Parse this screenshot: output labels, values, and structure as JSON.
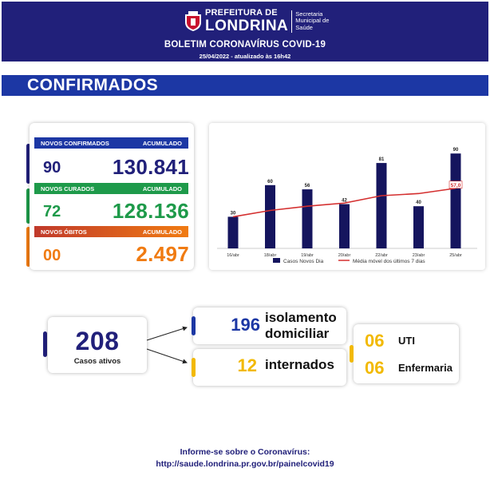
{
  "header": {
    "logo_line1": "PREFEITURA DE",
    "logo_line2": "LONDRINA",
    "secretaria": "Secretaria Municipal de Saúde",
    "title": "BOLETIM CORONAVÍRUS COVID-19",
    "date": "25/04/2022 - atualizado às 16h42",
    "bg_color": "#21207a"
  },
  "banner": {
    "title": "CONFIRMADOS",
    "color": "#1c37a4"
  },
  "stats": {
    "confirmados": {
      "label": "NOVOS CONFIRMADOS",
      "acc_label": "ACUMULADO",
      "new": "90",
      "total": "130.841",
      "color": "#1c37a4"
    },
    "curados": {
      "label": "NOVOS CURADOS",
      "acc_label": "ACUMULADO",
      "new": "72",
      "total": "128.136",
      "color": "#1e9a4a"
    },
    "obitos": {
      "label": "NOVOS ÓBITOS",
      "acc_label": "ACUMULADO",
      "new": "00",
      "total": "2.497",
      "color": "#f07b12"
    }
  },
  "chart_data": {
    "type": "bar",
    "categories": [
      "16/abr",
      "18/abr",
      "19/abr",
      "20/abr",
      "22/abr",
      "23/abr",
      "25/abr"
    ],
    "series": [
      {
        "name": "Casos Novos Dia",
        "type": "bar",
        "values": [
          30,
          60,
          56,
          42,
          81,
          40,
          90
        ],
        "color": "#15155e"
      },
      {
        "name": "Média móvel dos últimos 7 dias",
        "type": "line",
        "values": [
          30,
          36,
          40,
          43,
          50,
          52,
          57
        ],
        "color": "#d42f2f"
      }
    ],
    "data_labels": [
      "30",
      "60",
      "56",
      "42",
      "81",
      "40",
      "90"
    ],
    "line_end_label": "57,0",
    "ylim": [
      0,
      100
    ],
    "legend": "bottom",
    "grid": false
  },
  "cases": {
    "active_count": "208",
    "active_label": "Casos ativos",
    "isolation_count": "196",
    "isolation_label_1": "isolamento",
    "isolation_label_2": "domiciliar",
    "hospital_count": "12",
    "hospital_label": "internados",
    "uti_count": "06",
    "uti_label": "UTI",
    "ward_count": "06",
    "ward_label": "Enfermaria",
    "accent_blue": "#1c37a4",
    "accent_yellow": "#f2b900"
  },
  "footer": {
    "line1": "Informe-se sobre o Coronavírus:",
    "line2": "http://saude.londrina.pr.gov.br/painelcovid19"
  }
}
